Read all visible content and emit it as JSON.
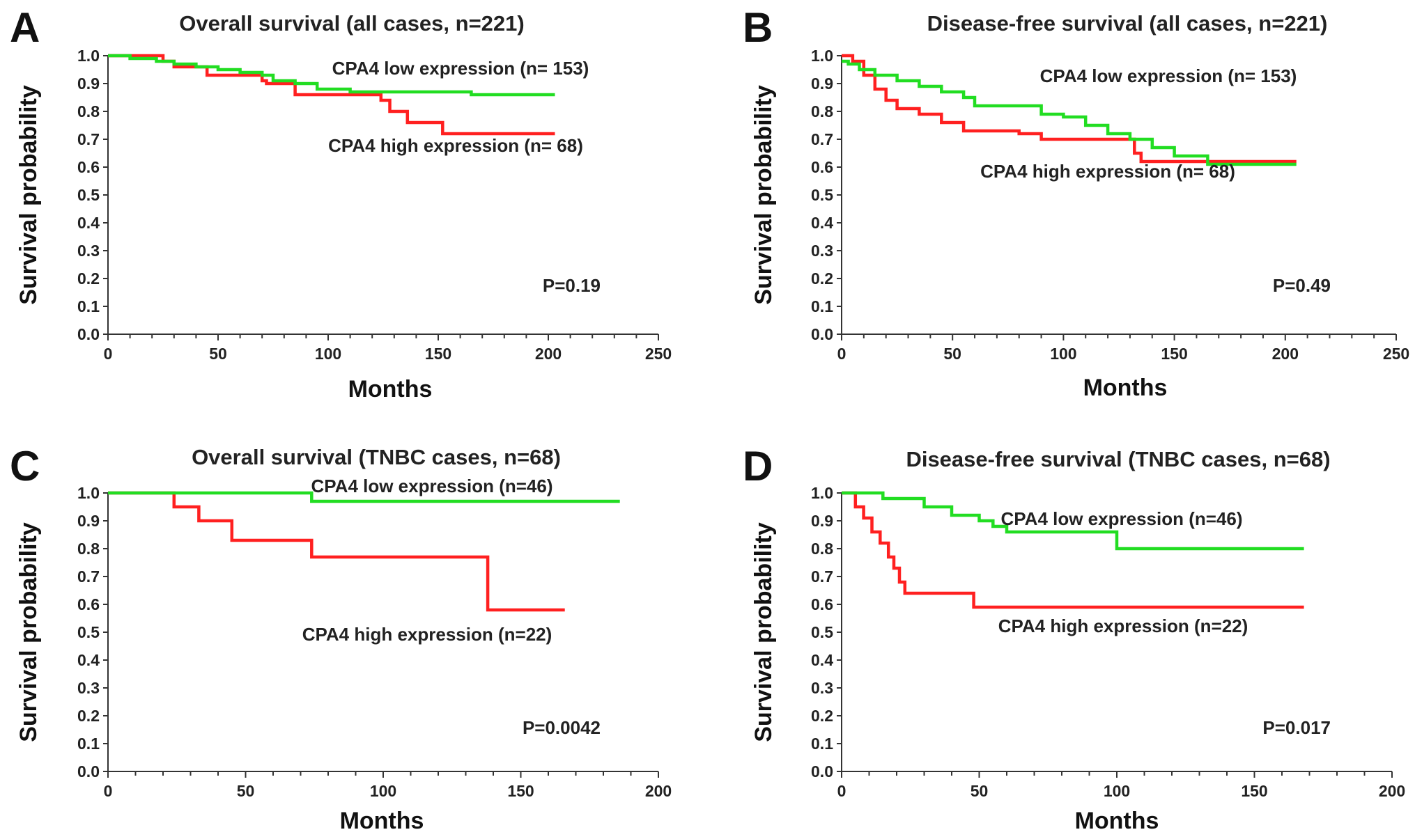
{
  "chart_data": [
    {
      "panel": "A",
      "type": "line",
      "title": "Overall survival  (all cases, n=221)",
      "xlabel": "Months",
      "ylabel": "Survival probability",
      "xlim": [
        0,
        250
      ],
      "ylim": [
        0,
        1.0
      ],
      "xticks": [
        "0",
        "50",
        "100",
        "150",
        "200",
        "250"
      ],
      "yticks": [
        "0.0",
        "0.1",
        "0.2",
        "0.3",
        "0.4",
        "0.5",
        "0.6",
        "0.7",
        "0.8",
        "0.9",
        "1.0"
      ],
      "grid": false,
      "p_value": "P=0.19",
      "series": [
        {
          "name": "CPA4 low expression (n= 153)",
          "color": "#22dd22",
          "x": [
            0,
            10,
            22,
            30,
            40,
            50,
            60,
            70,
            75,
            85,
            95,
            110,
            130,
            160,
            165,
            203
          ],
          "y": [
            1.0,
            0.99,
            0.98,
            0.97,
            0.96,
            0.95,
            0.94,
            0.93,
            0.91,
            0.9,
            0.88,
            0.87,
            0.87,
            0.87,
            0.86,
            0.86
          ]
        },
        {
          "name": "CPA4 high expression (n= 68)",
          "color": "#ff2020",
          "x": [
            0,
            25,
            30,
            45,
            70,
            72,
            85,
            124,
            128,
            136,
            152,
            203
          ],
          "y": [
            1.0,
            0.98,
            0.96,
            0.93,
            0.91,
            0.9,
            0.86,
            0.84,
            0.8,
            0.76,
            0.72,
            0.72
          ]
        }
      ]
    },
    {
      "panel": "B",
      "type": "line",
      "title": "Disease-free survival  (all cases, n=221)",
      "xlabel": "Months",
      "ylabel": "Survival probability",
      "xlim": [
        0,
        250
      ],
      "ylim": [
        0,
        1.0
      ],
      "xticks": [
        "0",
        "50",
        "100",
        "150",
        "200",
        "250"
      ],
      "yticks": [
        "0.0",
        "0.1",
        "0.2",
        "0.3",
        "0.4",
        "0.5",
        "0.6",
        "0.7",
        "0.8",
        "0.9",
        "1.0"
      ],
      "grid": false,
      "p_value": "P=0.49",
      "series": [
        {
          "name": "CPA4 low expression (n= 153)",
          "color": "#22dd22",
          "x": [
            0,
            3,
            8,
            15,
            25,
            35,
            45,
            55,
            60,
            80,
            90,
            100,
            110,
            120,
            130,
            140,
            150,
            165,
            205
          ],
          "y": [
            0.98,
            0.97,
            0.95,
            0.93,
            0.91,
            0.89,
            0.87,
            0.85,
            0.82,
            0.82,
            0.79,
            0.78,
            0.75,
            0.72,
            0.7,
            0.67,
            0.64,
            0.61,
            0.61
          ]
        },
        {
          "name": "CPA4 high expression (n= 68)",
          "color": "#ff2020",
          "x": [
            0,
            5,
            10,
            15,
            20,
            25,
            35,
            45,
            55,
            80,
            90,
            110,
            125,
            132,
            135,
            150,
            205
          ],
          "y": [
            1.0,
            0.98,
            0.93,
            0.88,
            0.84,
            0.81,
            0.79,
            0.76,
            0.73,
            0.72,
            0.7,
            0.7,
            0.7,
            0.65,
            0.62,
            0.62,
            0.62
          ]
        }
      ]
    },
    {
      "panel": "C",
      "type": "line",
      "title": "Overall survival  (TNBC cases, n=68)",
      "xlabel": "Months",
      "ylabel": "Survival probability",
      "xlim": [
        0,
        200
      ],
      "ylim": [
        0,
        1.0
      ],
      "xticks": [
        "0",
        "50",
        "100",
        "150",
        "200"
      ],
      "yticks": [
        "0.0",
        "0.1",
        "0.2",
        "0.3",
        "0.4",
        "0.5",
        "0.6",
        "0.7",
        "0.8",
        "0.9",
        "1.0"
      ],
      "grid": false,
      "p_value": "P=0.0042",
      "series": [
        {
          "name": "CPA4 low expression (n=46)",
          "color": "#22dd22",
          "x": [
            0,
            72,
            74,
            186
          ],
          "y": [
            1.0,
            1.0,
            0.97,
            0.97
          ]
        },
        {
          "name": "CPA4 high expression (n=22)",
          "color": "#ff2020",
          "x": [
            0,
            24,
            33,
            45,
            74,
            138,
            166
          ],
          "y": [
            1.0,
            0.95,
            0.9,
            0.83,
            0.77,
            0.58,
            0.58
          ]
        }
      ]
    },
    {
      "panel": "D",
      "type": "line",
      "title": "Disease-free survival  (TNBC cases, n=68)",
      "xlabel": "Months",
      "ylabel": "Survival probability",
      "xlim": [
        0,
        200
      ],
      "ylim": [
        0,
        1.0
      ],
      "xticks": [
        "0",
        "50",
        "100",
        "150",
        "200"
      ],
      "yticks": [
        "0.0",
        "0.1",
        "0.2",
        "0.3",
        "0.4",
        "0.5",
        "0.6",
        "0.7",
        "0.8",
        "0.9",
        "1.0"
      ],
      "grid": false,
      "p_value": "P=0.017",
      "series": [
        {
          "name": "CPA4 low expression (n=46)",
          "color": "#22dd22",
          "x": [
            0,
            15,
            30,
            40,
            50,
            55,
            60,
            100,
            168
          ],
          "y": [
            1.0,
            0.98,
            0.95,
            0.92,
            0.9,
            0.88,
            0.86,
            0.8,
            0.8
          ]
        },
        {
          "name": "CPA4 high expression (n=22)",
          "color": "#ff2020",
          "x": [
            0,
            5,
            8,
            11,
            14,
            17,
            19,
            21,
            23,
            48,
            168
          ],
          "y": [
            1.0,
            0.95,
            0.91,
            0.86,
            0.82,
            0.77,
            0.73,
            0.68,
            0.64,
            0.59,
            0.59
          ]
        }
      ]
    }
  ]
}
